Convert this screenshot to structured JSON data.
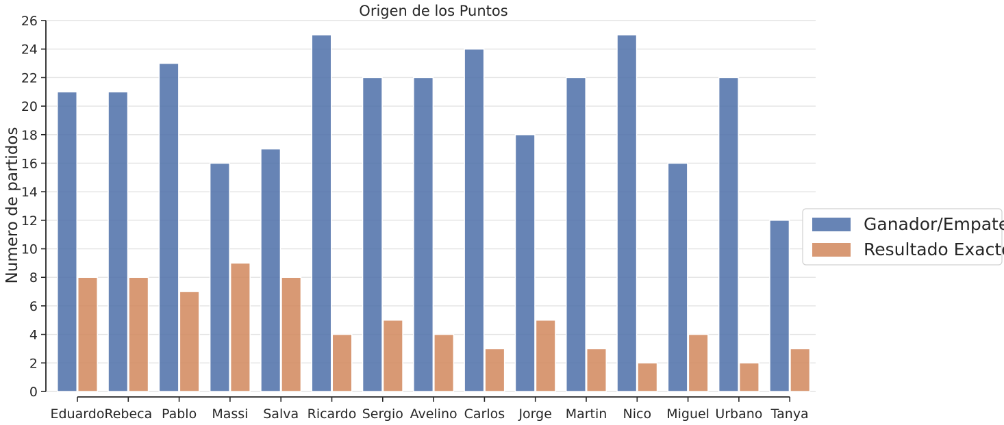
{
  "chart_data": {
    "type": "bar",
    "title": "Origen de los Puntos",
    "xlabel": "",
    "ylabel": "Numero de partidos",
    "ylim": [
      0,
      26
    ],
    "yticks": [
      0,
      2,
      4,
      6,
      8,
      10,
      12,
      14,
      16,
      18,
      20,
      22,
      24,
      26
    ],
    "grid": "y",
    "legend_position": "right",
    "categories": [
      "Eduardo",
      "Rebeca",
      "Pablo",
      "Massi",
      "Salva",
      "Ricardo",
      "Sergio",
      "Avelino",
      "Carlos",
      "Jorge",
      "Martin",
      "Nico",
      "Miguel",
      "Urbano",
      "Tanya"
    ],
    "series": [
      {
        "name": "Ganador/Empate",
        "color": "#4c6ea8",
        "values": [
          21,
          21,
          23,
          16,
          17,
          25,
          22,
          22,
          24,
          18,
          22,
          25,
          16,
          22,
          12
        ]
      },
      {
        "name": "Resultado Exacto",
        "color": "#d1875c",
        "values": [
          8,
          8,
          7,
          9,
          8,
          4,
          5,
          4,
          3,
          5,
          3,
          2,
          4,
          2,
          3
        ]
      }
    ]
  }
}
